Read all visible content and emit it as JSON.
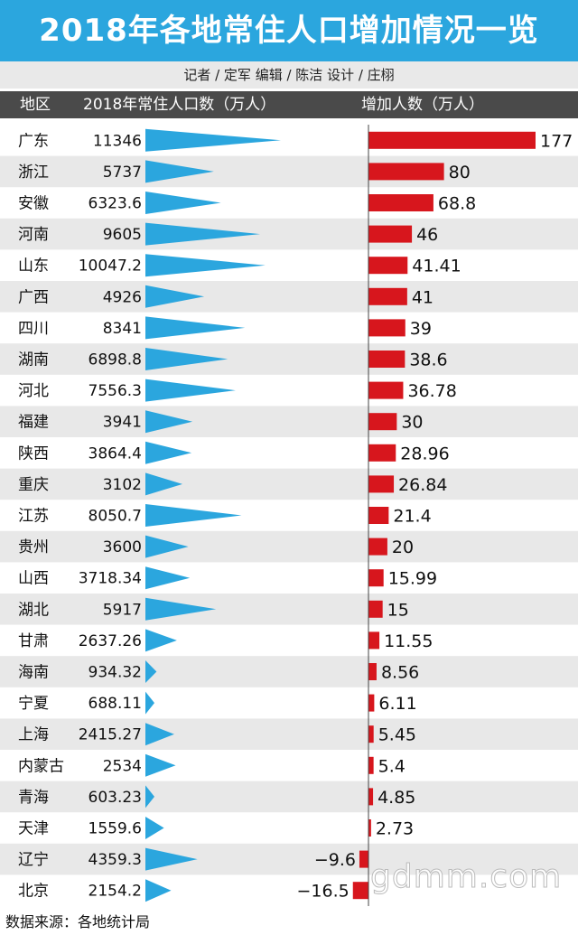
{
  "title": "2018年各地常住人口增加情况一览",
  "credits": "记者 / 定军   编辑 / 陈洁   设计 / 庄栩",
  "header": {
    "region_label": "地区",
    "population_label": "2018年常住人口数（万人）",
    "increase_label": "增加人数（万人）"
  },
  "footer": "数据来源：各地统计局",
  "watermark": "gdmm.com",
  "colors": {
    "title_bg": "#2ba6de",
    "triangle": "#2ba6de",
    "bar": "#d7161d",
    "stripe": "#e8e8e8",
    "header_bg": "#4a4a4a"
  },
  "chart_data": {
    "type": "table",
    "columns": [
      "地区",
      "2018年常住人口数（万人）",
      "增加人数（万人）"
    ],
    "rows": [
      {
        "region": "广东",
        "population": "11346",
        "increase": "177"
      },
      {
        "region": "浙江",
        "population": "5737",
        "increase": "80"
      },
      {
        "region": "安徽",
        "population": "6323.6",
        "increase": "68.8"
      },
      {
        "region": "河南",
        "population": "9605",
        "increase": "46"
      },
      {
        "region": "山东",
        "population": "10047.2",
        "increase": "41.41"
      },
      {
        "region": "广西",
        "population": "4926",
        "increase": "41"
      },
      {
        "region": "四川",
        "population": "8341",
        "increase": "39"
      },
      {
        "region": "湖南",
        "population": "6898.8",
        "increase": "38.6"
      },
      {
        "region": "河北",
        "population": "7556.3",
        "increase": "36.78"
      },
      {
        "region": "福建",
        "population": "3941",
        "increase": "30"
      },
      {
        "region": "陕西",
        "population": "3864.4",
        "increase": "28.96"
      },
      {
        "region": "重庆",
        "population": "3102",
        "increase": "26.84"
      },
      {
        "region": "江苏",
        "population": "8050.7",
        "increase": "21.4"
      },
      {
        "region": "贵州",
        "population": "3600",
        "increase": "20"
      },
      {
        "region": "山西",
        "population": "3718.34",
        "increase": "15.99"
      },
      {
        "region": "湖北",
        "population": "5917",
        "increase": "15"
      },
      {
        "region": "甘肃",
        "population": "2637.26",
        "increase": "11.55"
      },
      {
        "region": "海南",
        "population": "934.32",
        "increase": "8.56"
      },
      {
        "region": "宁夏",
        "population": "688.11",
        "increase": "6.11"
      },
      {
        "region": "上海",
        "population": "2415.27",
        "increase": "5.45"
      },
      {
        "region": "内蒙古",
        "population": "2534",
        "increase": "5.4"
      },
      {
        "region": "青海",
        "population": "603.23",
        "increase": "4.85"
      },
      {
        "region": "天津",
        "population": "1559.6",
        "increase": "2.73"
      },
      {
        "region": "辽宁",
        "population": "4359.3",
        "increase": "−9.6"
      },
      {
        "region": "北京",
        "population": "2154.2",
        "increase": "−16.5"
      }
    ]
  }
}
